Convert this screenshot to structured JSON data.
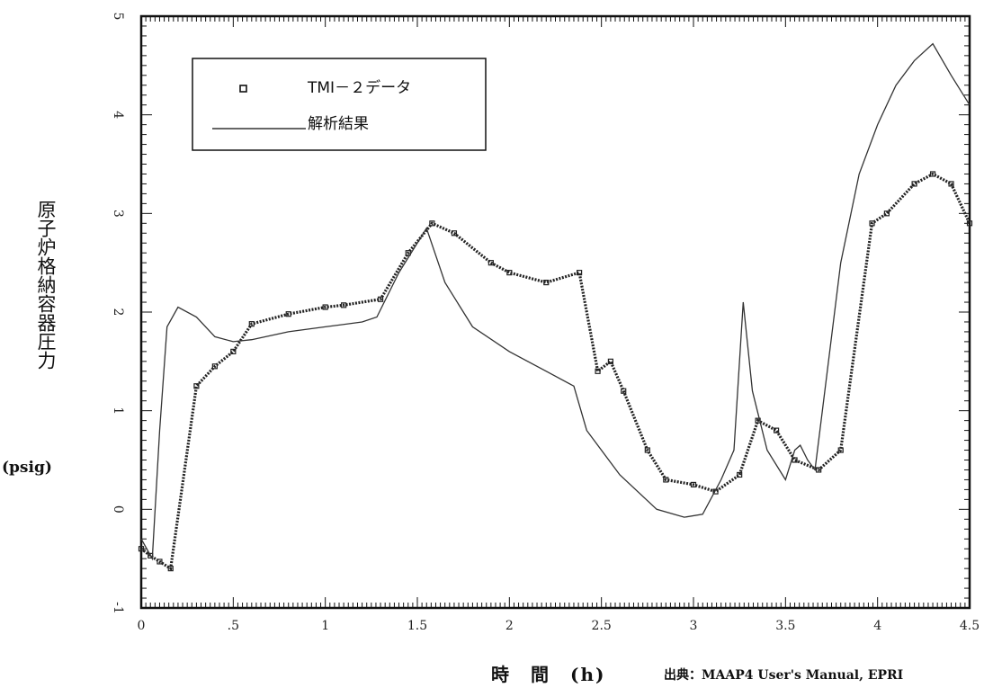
{
  "chart_data": {
    "type": "line",
    "title": "",
    "xlabel": "時　間　(h)",
    "ylabel": "原子炉格納容器圧力",
    "ylabel_unit": "(psig)",
    "source_note": "出典：MAAP4 User's Manual, EPRI",
    "xlim": [
      0,
      4.5
    ],
    "ylim": [
      -1,
      5
    ],
    "grid": false,
    "legend_position": "top-left",
    "x_ticks": [
      "0",
      ".5",
      "1",
      "1.5",
      "2",
      "2.5",
      "3",
      "3.5",
      "4",
      "4.5"
    ],
    "y_ticks": [
      "-1",
      "0",
      "1",
      "2",
      "3",
      "4",
      "5"
    ],
    "series": [
      {
        "name": "TMI－２データ",
        "style": "markers",
        "color": "#222222",
        "x": [
          0,
          0.05,
          0.1,
          0.16,
          0.3,
          0.4,
          0.5,
          0.6,
          0.8,
          1.0,
          1.1,
          1.3,
          1.45,
          1.58,
          1.7,
          1.9,
          2.0,
          2.2,
          2.38,
          2.48,
          2.55,
          2.62,
          2.75,
          2.85,
          3.0,
          3.12,
          3.25,
          3.35,
          3.45,
          3.55,
          3.68,
          3.8,
          3.97,
          4.05,
          4.2,
          4.3,
          4.4,
          4.5
        ],
        "y": [
          -0.4,
          -0.47,
          -0.53,
          -0.6,
          1.25,
          1.45,
          1.6,
          1.88,
          1.98,
          2.05,
          2.07,
          2.13,
          2.6,
          2.9,
          2.8,
          2.5,
          2.4,
          2.3,
          2.4,
          1.4,
          1.5,
          1.2,
          0.6,
          0.3,
          0.25,
          0.18,
          0.35,
          0.9,
          0.8,
          0.5,
          0.4,
          0.6,
          2.9,
          3.0,
          3.3,
          3.4,
          3.3,
          2.9
        ]
      },
      {
        "name": "解析結果",
        "style": "line",
        "color": "#333333",
        "x": [
          0,
          0.06,
          0.1,
          0.14,
          0.2,
          0.3,
          0.4,
          0.5,
          0.6,
          0.8,
          1.0,
          1.2,
          1.28,
          1.4,
          1.5,
          1.55,
          1.65,
          1.8,
          2.0,
          2.2,
          2.35,
          2.42,
          2.6,
          2.8,
          2.95,
          3.05,
          3.15,
          3.22,
          3.27,
          3.32,
          3.4,
          3.5,
          3.55,
          3.58,
          3.62,
          3.66,
          3.7,
          3.8,
          3.9,
          4.0,
          4.1,
          4.2,
          4.3,
          4.4,
          4.5
        ],
        "y": [
          -0.3,
          -0.5,
          0.8,
          1.85,
          2.05,
          1.95,
          1.75,
          1.7,
          1.72,
          1.8,
          1.85,
          1.9,
          1.95,
          2.4,
          2.7,
          2.85,
          2.3,
          1.85,
          1.6,
          1.4,
          1.25,
          0.8,
          0.35,
          0.0,
          -0.08,
          -0.05,
          0.3,
          0.6,
          2.1,
          1.2,
          0.6,
          0.3,
          0.6,
          0.65,
          0.5,
          0.4,
          1.0,
          2.5,
          3.4,
          3.9,
          4.3,
          4.55,
          4.72,
          4.4,
          4.1
        ]
      }
    ]
  }
}
